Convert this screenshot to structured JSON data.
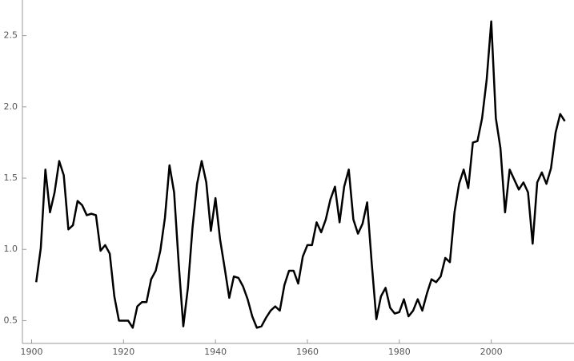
{
  "chart_data": {
    "type": "line",
    "color": "#000000",
    "x": [
      1901,
      1902,
      1903,
      1904,
      1905,
      1906,
      1907,
      1908,
      1909,
      1910,
      1911,
      1912,
      1913,
      1914,
      1915,
      1916,
      1917,
      1918,
      1919,
      1920,
      1921,
      1922,
      1923,
      1924,
      1925,
      1926,
      1927,
      1928,
      1929,
      1930,
      1931,
      1932,
      1933,
      1934,
      1935,
      1936,
      1937,
      1938,
      1939,
      1940,
      1941,
      1942,
      1943,
      1944,
      1945,
      1946,
      1947,
      1948,
      1949,
      1950,
      1951,
      1952,
      1953,
      1954,
      1955,
      1956,
      1957,
      1958,
      1959,
      1960,
      1961,
      1962,
      1963,
      1964,
      1965,
      1966,
      1967,
      1968,
      1969,
      1970,
      1971,
      1972,
      1973,
      1974,
      1975,
      1976,
      1977,
      1978,
      1979,
      1980,
      1981,
      1982,
      1983,
      1984,
      1985,
      1986,
      1987,
      1988,
      1989,
      1990,
      1991,
      1992,
      1993,
      1994,
      1995,
      1996,
      1997,
      1998,
      1999,
      2000,
      2001,
      2002,
      2003,
      2004,
      2005,
      2006,
      2007,
      2008,
      2009,
      2010,
      2011,
      2012,
      2013,
      2014,
      2015,
      2016
    ],
    "values": [
      0.77,
      1.01,
      1.56,
      1.26,
      1.4,
      1.62,
      1.52,
      1.14,
      1.17,
      1.34,
      1.31,
      1.24,
      1.25,
      1.24,
      0.99,
      1.03,
      0.97,
      0.67,
      0.5,
      0.5,
      0.5,
      0.45,
      0.6,
      0.63,
      0.63,
      0.79,
      0.85,
      0.99,
      1.22,
      1.59,
      1.4,
      0.9,
      0.46,
      0.73,
      1.15,
      1.46,
      1.62,
      1.47,
      1.13,
      1.36,
      1.07,
      0.87,
      0.66,
      0.81,
      0.8,
      0.74,
      0.65,
      0.53,
      0.45,
      0.46,
      0.52,
      0.57,
      0.6,
      0.57,
      0.75,
      0.85,
      0.85,
      0.76,
      0.95,
      1.03,
      1.03,
      1.19,
      1.12,
      1.21,
      1.35,
      1.44,
      1.19,
      1.44,
      1.56,
      1.21,
      1.11,
      1.18,
      1.33,
      0.9,
      0.51,
      0.67,
      0.73,
      0.59,
      0.55,
      0.56,
      0.65,
      0.53,
      0.57,
      0.65,
      0.57,
      0.69,
      0.79,
      0.77,
      0.81,
      0.94,
      0.91,
      1.26,
      1.46,
      1.56,
      1.43,
      1.75,
      1.76,
      1.92,
      2.19,
      2.6,
      1.92,
      1.71,
      1.26,
      1.56,
      1.49,
      1.42,
      1.47,
      1.4,
      1.04,
      1.47,
      1.54,
      1.46,
      1.57,
      1.82,
      1.95,
      1.9
    ],
    "xlim": [
      1898,
      2018
    ],
    "xticks": [
      1900,
      1920,
      1940,
      1960,
      1980,
      2000
    ],
    "ylim": [
      0.34,
      2.75
    ],
    "yticks": [
      0.5,
      {
        "value": 1,
        "label": "1.0"
      },
      1.5,
      {
        "value": 2,
        "label": "2.0"
      },
      2.5
    ]
  }
}
